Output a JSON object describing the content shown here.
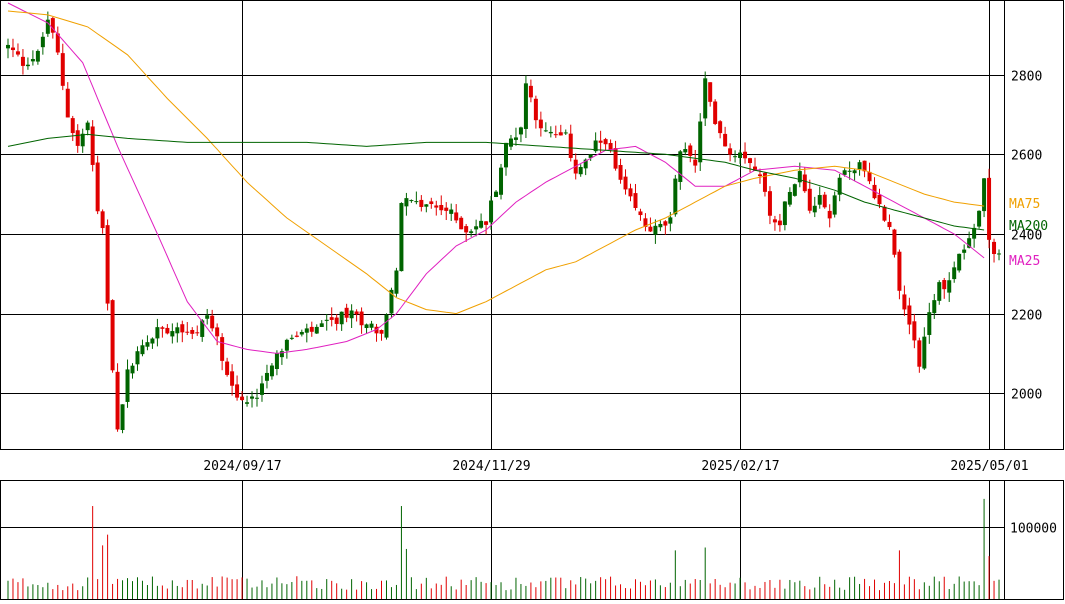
{
  "chart_data": {
    "type": "candlestick",
    "x_axis": {
      "tick_labels": [
        "2024/09/17",
        "2024/11/29",
        "2025/02/17",
        "2025/05/01"
      ],
      "tick_index": [
        47,
        97,
        147,
        197
      ]
    },
    "price_axis": {
      "ylim": [
        1860,
        2985
      ],
      "ticks": [
        2000,
        2200,
        2400,
        2600,
        2800
      ],
      "grid": true,
      "side": "right"
    },
    "volume_axis": {
      "ylim": [
        0,
        165000
      ],
      "ticks": [
        100000
      ],
      "side": "right"
    },
    "legend": [
      {
        "name": "MA75",
        "color": "#f0a000"
      },
      {
        "name": "MA200",
        "color": "#006400"
      },
      {
        "name": "MA25",
        "color": "#e020c0"
      }
    ],
    "colors": {
      "up": "#006400",
      "down": "#e00000",
      "grid": "#000000"
    },
    "ma_anchors": {
      "MA25": [
        [
          0,
          2980
        ],
        [
          8,
          2930
        ],
        [
          15,
          2830
        ],
        [
          22,
          2620
        ],
        [
          30,
          2400
        ],
        [
          36,
          2230
        ],
        [
          42,
          2130
        ],
        [
          48,
          2110
        ],
        [
          54,
          2100
        ],
        [
          60,
          2110
        ],
        [
          68,
          2130
        ],
        [
          74,
          2160
        ],
        [
          78,
          2200
        ],
        [
          84,
          2300
        ],
        [
          90,
          2370
        ],
        [
          96,
          2410
        ],
        [
          102,
          2480
        ],
        [
          108,
          2530
        ],
        [
          114,
          2570
        ],
        [
          120,
          2610
        ],
        [
          126,
          2620
        ],
        [
          132,
          2580
        ],
        [
          138,
          2520
        ],
        [
          144,
          2520
        ],
        [
          150,
          2560
        ],
        [
          158,
          2570
        ],
        [
          166,
          2560
        ],
        [
          172,
          2520
        ],
        [
          178,
          2480
        ],
        [
          184,
          2440
        ],
        [
          190,
          2400
        ],
        [
          196,
          2340
        ]
      ],
      "MA75": [
        [
          0,
          2960
        ],
        [
          8,
          2950
        ],
        [
          16,
          2920
        ],
        [
          24,
          2850
        ],
        [
          32,
          2740
        ],
        [
          40,
          2640
        ],
        [
          48,
          2530
        ],
        [
          56,
          2440
        ],
        [
          64,
          2370
        ],
        [
          72,
          2300
        ],
        [
          78,
          2240
        ],
        [
          84,
          2210
        ],
        [
          90,
          2200
        ],
        [
          96,
          2230
        ],
        [
          102,
          2270
        ],
        [
          108,
          2310
        ],
        [
          114,
          2330
        ],
        [
          120,
          2370
        ],
        [
          126,
          2410
        ],
        [
          132,
          2440
        ],
        [
          138,
          2480
        ],
        [
          144,
          2520
        ],
        [
          150,
          2540
        ],
        [
          158,
          2560
        ],
        [
          166,
          2570
        ],
        [
          172,
          2560
        ],
        [
          178,
          2530
        ],
        [
          184,
          2500
        ],
        [
          190,
          2480
        ],
        [
          196,
          2470
        ]
      ],
      "MA200": [
        [
          0,
          2620
        ],
        [
          8,
          2640
        ],
        [
          16,
          2650
        ],
        [
          24,
          2640
        ],
        [
          36,
          2630
        ],
        [
          48,
          2630
        ],
        [
          60,
          2630
        ],
        [
          72,
          2620
        ],
        [
          84,
          2630
        ],
        [
          96,
          2630
        ],
        [
          108,
          2620
        ],
        [
          120,
          2610
        ],
        [
          132,
          2600
        ],
        [
          138,
          2590
        ],
        [
          144,
          2580
        ],
        [
          150,
          2560
        ],
        [
          158,
          2540
        ],
        [
          166,
          2510
        ],
        [
          172,
          2480
        ],
        [
          178,
          2460
        ],
        [
          184,
          2440
        ],
        [
          190,
          2420
        ],
        [
          196,
          2410
        ]
      ]
    },
    "price_anchors": [
      [
        0,
        2870
      ],
      [
        3,
        2830
      ],
      [
        6,
        2850
      ],
      [
        8,
        2940
      ],
      [
        10,
        2850
      ],
      [
        12,
        2700
      ],
      [
        14,
        2620
      ],
      [
        16,
        2680
      ],
      [
        18,
        2460
      ],
      [
        19,
        2400
      ],
      [
        20,
        2220
      ],
      [
        21,
        2070
      ],
      [
        22,
        1900
      ],
      [
        24,
        2050
      ],
      [
        26,
        2100
      ],
      [
        28,
        2130
      ],
      [
        30,
        2160
      ],
      [
        34,
        2170
      ],
      [
        38,
        2150
      ],
      [
        40,
        2200
      ],
      [
        42,
        2130
      ],
      [
        44,
        2060
      ],
      [
        46,
        1990
      ],
      [
        48,
        1970
      ],
      [
        50,
        2000
      ],
      [
        52,
        2060
      ],
      [
        54,
        2100
      ],
      [
        56,
        2130
      ],
      [
        60,
        2150
      ],
      [
        64,
        2170
      ],
      [
        68,
        2200
      ],
      [
        72,
        2180
      ],
      [
        75,
        2150
      ],
      [
        77,
        2250
      ],
      [
        78,
        2300
      ],
      [
        79,
        2480
      ],
      [
        84,
        2470
      ],
      [
        88,
        2460
      ],
      [
        92,
        2410
      ],
      [
        96,
        2430
      ],
      [
        98,
        2520
      ],
      [
        100,
        2620
      ],
      [
        103,
        2670
      ],
      [
        104,
        2780
      ],
      [
        106,
        2700
      ],
      [
        108,
        2650
      ],
      [
        112,
        2640
      ],
      [
        114,
        2560
      ],
      [
        116,
        2580
      ],
      [
        118,
        2620
      ],
      [
        120,
        2640
      ],
      [
        122,
        2560
      ],
      [
        124,
        2500
      ],
      [
        126,
        2460
      ],
      [
        128,
        2420
      ],
      [
        130,
        2410
      ],
      [
        133,
        2430
      ],
      [
        135,
        2620
      ],
      [
        138,
        2580
      ],
      [
        140,
        2790
      ],
      [
        141,
        2720
      ],
      [
        143,
        2660
      ],
      [
        145,
        2600
      ],
      [
        147,
        2610
      ],
      [
        149,
        2590
      ],
      [
        151,
        2540
      ],
      [
        153,
        2460
      ],
      [
        155,
        2420
      ],
      [
        157,
        2520
      ],
      [
        159,
        2560
      ],
      [
        161,
        2470
      ],
      [
        163,
        2500
      ],
      [
        165,
        2440
      ],
      [
        167,
        2550
      ],
      [
        169,
        2560
      ],
      [
        171,
        2570
      ],
      [
        173,
        2530
      ],
      [
        175,
        2470
      ],
      [
        177,
        2420
      ],
      [
        179,
        2270
      ],
      [
        181,
        2180
      ],
      [
        183,
        2080
      ],
      [
        185,
        2200
      ],
      [
        187,
        2270
      ],
      [
        189,
        2280
      ],
      [
        191,
        2350
      ],
      [
        193,
        2390
      ],
      [
        194,
        2410
      ],
      [
        195,
        2460
      ],
      [
        196,
        2530
      ],
      [
        197,
        2400
      ],
      [
        198,
        2350
      ]
    ],
    "volume_spikes": [
      [
        17,
        130000
      ],
      [
        19,
        75000
      ],
      [
        20,
        90000
      ],
      [
        79,
        130000
      ],
      [
        80,
        70000
      ],
      [
        134,
        68000
      ],
      [
        140,
        72000
      ],
      [
        179,
        68000
      ],
      [
        196,
        140000
      ],
      [
        197,
        60000
      ]
    ]
  }
}
